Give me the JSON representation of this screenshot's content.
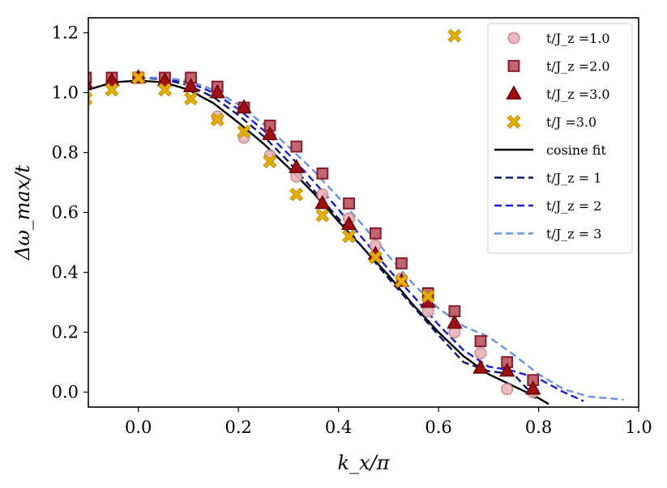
{
  "chart_data": {
    "type": "scatter",
    "xlabel": "k_x/π",
    "ylabel": "Δω_max/t",
    "xlim": [
      -0.1,
      1.0
    ],
    "ylim": [
      -0.05,
      1.25
    ],
    "xticks": [
      "0.0",
      "0.2",
      "0.4",
      "0.6",
      "0.8",
      "1.0"
    ],
    "yticks": [
      "0.0",
      "0.2",
      "0.4",
      "0.6",
      "0.8",
      "1.0",
      "1.2"
    ],
    "grid": false,
    "legend_position": "top-right",
    "series": [
      {
        "name": "t/J_z =1.0",
        "kind": "markers",
        "marker": "circle",
        "color": "#e8b4b8",
        "edge": "#c78088",
        "x": [
          -0.105,
          -0.053,
          0.0,
          0.053,
          0.105,
          0.158,
          0.211,
          0.263,
          0.316,
          0.368,
          0.421,
          0.474,
          0.526,
          0.579,
          0.632,
          0.684,
          0.737,
          0.789
        ],
        "y": [
          1.04,
          1.04,
          1.05,
          1.04,
          1.03,
          0.92,
          0.85,
          0.79,
          0.72,
          0.66,
          0.58,
          0.49,
          0.38,
          0.27,
          0.2,
          0.13,
          0.01,
          0.0
        ]
      },
      {
        "name": "t/J_z =2.0",
        "kind": "markers",
        "marker": "square",
        "color": "#c06670",
        "edge": "#8b1a2a",
        "x": [
          -0.105,
          -0.053,
          0.0,
          0.053,
          0.105,
          0.158,
          0.211,
          0.263,
          0.316,
          0.368,
          0.421,
          0.474,
          0.526,
          0.579,
          0.632,
          0.684,
          0.737,
          0.789
        ],
        "y": [
          1.05,
          1.05,
          1.05,
          1.05,
          1.05,
          1.02,
          0.95,
          0.89,
          0.82,
          0.73,
          0.63,
          0.53,
          0.43,
          0.33,
          0.27,
          0.17,
          0.1,
          0.04
        ]
      },
      {
        "name": "t/J_z =3.0",
        "kind": "markers",
        "marker": "triangle",
        "color": "#a01010",
        "edge": "#6e0000",
        "x": [
          -0.105,
          -0.053,
          0.0,
          0.053,
          0.105,
          0.158,
          0.211,
          0.263,
          0.316,
          0.368,
          0.421,
          0.474,
          0.526,
          0.579,
          0.632,
          0.684,
          0.737,
          0.789
        ],
        "y": [
          1.03,
          1.04,
          1.05,
          1.04,
          1.02,
          1.0,
          0.95,
          0.86,
          0.75,
          0.63,
          0.56,
          0.46,
          0.37,
          0.3,
          0.23,
          0.08,
          0.07,
          0.01
        ]
      },
      {
        "name": "t/J =3.0",
        "kind": "markers",
        "marker": "x",
        "color": "#e6b000",
        "edge": "#c99200",
        "x": [
          -0.105,
          -0.053,
          0.0,
          0.053,
          0.105,
          0.158,
          0.211,
          0.263,
          0.316,
          0.368,
          0.421,
          0.474,
          0.526,
          0.579,
          0.632
        ],
        "y": [
          0.98,
          1.01,
          1.05,
          1.01,
          0.98,
          0.91,
          0.87,
          0.77,
          0.66,
          0.59,
          0.52,
          0.45,
          0.37,
          0.32,
          1.19
        ]
      },
      {
        "name": "cosine fit",
        "kind": "line",
        "color": "#000000",
        "dashed": false,
        "x": [
          -0.1,
          -0.05,
          0.0,
          0.05,
          0.1,
          0.15,
          0.2,
          0.25,
          0.3,
          0.35,
          0.4,
          0.45,
          0.5,
          0.55,
          0.6,
          0.65,
          0.7,
          0.75,
          0.8,
          0.82
        ],
        "y": [
          1.01,
          1.035,
          1.04,
          1.035,
          1.01,
          0.965,
          0.9,
          0.83,
          0.75,
          0.665,
          0.57,
          0.48,
          0.39,
          0.29,
          0.2,
          0.12,
          0.06,
          0.02,
          -0.02,
          -0.04
        ]
      },
      {
        "name": "t/J_z = 1",
        "kind": "line",
        "color": "#0b1a6e",
        "dashed": true,
        "x": [
          0.0,
          0.05,
          0.1,
          0.15,
          0.2,
          0.25,
          0.3,
          0.35,
          0.4,
          0.45,
          0.5,
          0.55,
          0.6,
          0.65,
          0.7,
          0.75,
          0.8
        ],
        "y": [
          1.05,
          1.045,
          1.025,
          0.985,
          0.925,
          0.855,
          0.77,
          0.675,
          0.58,
          0.48,
          0.38,
          0.285,
          0.19,
          0.1,
          0.07,
          0.06,
          -0.03
        ]
      },
      {
        "name": "t/J_z = 2",
        "kind": "line",
        "color": "#1a1ae6",
        "dashed": true,
        "x": [
          0.0,
          0.05,
          0.1,
          0.15,
          0.2,
          0.25,
          0.3,
          0.35,
          0.4,
          0.45,
          0.5,
          0.55,
          0.6,
          0.65,
          0.7,
          0.72,
          0.75,
          0.8,
          0.85,
          0.89
        ],
        "y": [
          1.05,
          1.048,
          1.035,
          1.0,
          0.945,
          0.875,
          0.795,
          0.705,
          0.61,
          0.51,
          0.41,
          0.32,
          0.225,
          0.14,
          0.085,
          0.08,
          0.07,
          0.045,
          0.0,
          -0.03
        ]
      },
      {
        "name": "t/J_z = 3",
        "kind": "line",
        "color": "#6495ed",
        "dashed": true,
        "x": [
          0.0,
          0.05,
          0.1,
          0.15,
          0.2,
          0.25,
          0.3,
          0.35,
          0.4,
          0.45,
          0.5,
          0.55,
          0.6,
          0.65,
          0.7,
          0.75,
          0.8,
          0.85,
          0.9,
          0.97
        ],
        "y": [
          1.05,
          1.05,
          1.04,
          1.01,
          0.96,
          0.895,
          0.82,
          0.74,
          0.65,
          0.555,
          0.455,
          0.36,
          0.28,
          0.22,
          0.185,
          0.125,
          0.06,
          0.01,
          -0.015,
          -0.025
        ]
      }
    ],
    "legend": [
      {
        "label": "t/J_z =1.0",
        "series": 0
      },
      {
        "label": "t/J_z =2.0",
        "series": 1
      },
      {
        "label": "t/J_z =3.0",
        "series": 2
      },
      {
        "label": "t/J =3.0",
        "series": 3
      },
      {
        "label": "cosine fit",
        "series": 4
      },
      {
        "label": "t/J_z = 1",
        "series": 5
      },
      {
        "label": "t/J_z = 2",
        "series": 6
      },
      {
        "label": "t/J_z = 3",
        "series": 7
      }
    ]
  }
}
